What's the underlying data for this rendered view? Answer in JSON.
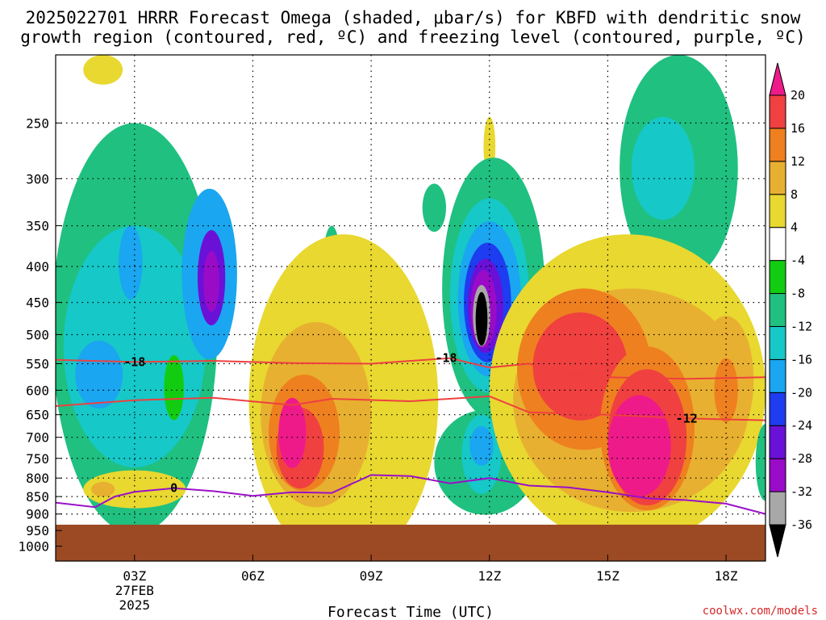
{
  "title": {
    "line1": "2025022701 HRRR Forecast Omega (shaded, μbar/s) for KBFD with dendritic snow",
    "line2": "growth region (contoured, red, ºC) and freezing level (contoured, purple, ºC)"
  },
  "credit": "coolwx.com/models",
  "chart_data": {
    "type": "heatmap",
    "title": "2025022701 HRRR Forecast Omega (shaded, μbar/s) for KBFD with dendritic snow growth region (contoured, red, ºC) and freezing level (contoured, purple, ºC)",
    "xlabel": "Forecast Time (UTC)",
    "ylabel": "",
    "x_range_hours": [
      1,
      19
    ],
    "x_ticks": [
      {
        "hour": 3,
        "label": "03Z",
        "sub1": "27FEB",
        "sub2": "2025"
      },
      {
        "hour": 6,
        "label": "06Z"
      },
      {
        "hour": 9,
        "label": "09Z"
      },
      {
        "hour": 12,
        "label": "12Z"
      },
      {
        "hour": 15,
        "label": "15Z"
      },
      {
        "hour": 18,
        "label": "18Z"
      }
    ],
    "y_scale": "log-pressure",
    "y_range_hpa": [
      1050,
      200
    ],
    "y_ticks": [
      250,
      300,
      350,
      400,
      450,
      500,
      550,
      600,
      650,
      700,
      750,
      800,
      850,
      900,
      950,
      1000
    ],
    "grid": true,
    "terrain_top_hpa": 932,
    "colorbar": {
      "levels": [
        -36,
        -32,
        -28,
        -24,
        -20,
        -16,
        -12,
        -8,
        -4,
        4,
        8,
        12,
        16,
        20
      ],
      "colors": [
        "#000000",
        "#a8a8a8",
        "#9a0bc8",
        "#6a11d8",
        "#1e3cf0",
        "#1aa6f0",
        "#16c8c8",
        "#20c080",
        "#12cc12",
        "#ffffff",
        "#e8d830",
        "#e8b030",
        "#ee8020",
        "#f04040",
        "#ee1a8a"
      ]
    },
    "colors": {
      "terrain": "#9b4a24",
      "dgz_contour": "#ee4040",
      "freezing_contour": "#9a10c8"
    },
    "contours": [
      {
        "name": "dgz_-18",
        "label": "-18",
        "points": [
          [
            1,
            543
          ],
          [
            3,
            547
          ],
          [
            5,
            545
          ],
          [
            7,
            549
          ],
          [
            9,
            550
          ],
          [
            11,
            540
          ],
          [
            12,
            557
          ],
          [
            13,
            550
          ],
          [
            14,
            570
          ],
          [
            15,
            575
          ],
          [
            17,
            578
          ],
          [
            19,
            575
          ]
        ]
      },
      {
        "name": "dgz_-12",
        "label": "-12",
        "points": [
          [
            1,
            632
          ],
          [
            3,
            620
          ],
          [
            5,
            615
          ],
          [
            7,
            630
          ],
          [
            8,
            617
          ],
          [
            10,
            622
          ],
          [
            12,
            612
          ],
          [
            13,
            645
          ],
          [
            15,
            650
          ],
          [
            17,
            658
          ],
          [
            19,
            662
          ]
        ]
      },
      {
        "name": "freezing_0",
        "label": "0",
        "points": [
          [
            1,
            867
          ],
          [
            2,
            880
          ],
          [
            2.5,
            850
          ],
          [
            3,
            837
          ],
          [
            4,
            827
          ],
          [
            5,
            835
          ],
          [
            6,
            848
          ],
          [
            7,
            838
          ],
          [
            8,
            840
          ],
          [
            9,
            792
          ],
          [
            10,
            795
          ],
          [
            11,
            814
          ],
          [
            12,
            800
          ],
          [
            13,
            820
          ],
          [
            14,
            825
          ],
          [
            15,
            838
          ],
          [
            16,
            855
          ],
          [
            17,
            860
          ],
          [
            18,
            870
          ],
          [
            19,
            900
          ]
        ]
      }
    ],
    "regions": [
      {
        "name": "descent-0230z-top",
        "level": 4,
        "hour": 2.2,
        "hpa": 210,
        "dh": 0.5,
        "dp": 25
      },
      {
        "name": "ascent-0200z-lower",
        "level": -8,
        "hour": 3.0,
        "hpa": 490,
        "dh": 2.1,
        "dp": 240
      },
      {
        "name": "ascent-0200z-lower",
        "level": -12,
        "hour": 3.0,
        "hpa": 520,
        "dh": 1.8,
        "dp": 170
      },
      {
        "name": "ascent-0200z-lower",
        "level": -16,
        "hour": 2.1,
        "hpa": 570,
        "dh": 0.6,
        "dp": 60
      },
      {
        "name": "ascent-0330z-upper",
        "level": -16,
        "hour": 2.9,
        "hpa": 395,
        "dh": 0.3,
        "dp": 45
      },
      {
        "name": "ascent-0500z",
        "level": -16,
        "hour": 4.9,
        "hpa": 410,
        "dh": 0.7,
        "dp": 100
      },
      {
        "name": "ascent-0500z",
        "level": -24,
        "hour": 4.95,
        "hpa": 415,
        "dh": 0.35,
        "dp": 60
      },
      {
        "name": "ascent-0500z",
        "level": -28,
        "hour": 4.95,
        "hpa": 420,
        "dh": 0.2,
        "dp": 40
      },
      {
        "name": "calm-hole-0400z",
        "level": -4,
        "hour": 4.0,
        "hpa": 595,
        "dh": 0.25,
        "dp": 60
      },
      {
        "name": "descent-0400z-low",
        "level": 4,
        "hour": 3.0,
        "hpa": 830,
        "dh": 1.3,
        "dp": 50
      },
      {
        "name": "descent-0400z-low",
        "level": 8,
        "hour": 2.2,
        "hpa": 830,
        "dh": 0.3,
        "dp": 20
      },
      {
        "name": "ascent-0700z-small",
        "level": -8,
        "hour": 8.0,
        "hpa": 415,
        "dh": 0.25,
        "dp": 65
      },
      {
        "name": "descent-0700z",
        "level": 4,
        "hour": 8.3,
        "hpa": 620,
        "dh": 2.4,
        "dp": 260
      },
      {
        "name": "descent-0700z",
        "level": 8,
        "hour": 7.6,
        "hpa": 650,
        "dh": 1.4,
        "dp": 170
      },
      {
        "name": "descent-0700z",
        "level": 12,
        "hour": 7.3,
        "hpa": 690,
        "dh": 0.9,
        "dp": 120
      },
      {
        "name": "descent-0700z",
        "level": 16,
        "hour": 7.2,
        "hpa": 725,
        "dh": 0.6,
        "dp": 90
      },
      {
        "name": "descent-0700z",
        "level": 20,
        "hour": 7.0,
        "hpa": 690,
        "dh": 0.35,
        "dp": 75
      },
      {
        "name": "ascent-1115z-small",
        "level": -8,
        "hour": 10.6,
        "hpa": 330,
        "dh": 0.3,
        "dp": 25
      },
      {
        "name": "descent-1200z-thin",
        "level": 4,
        "hour": 12.0,
        "hpa": 270,
        "dh": 0.15,
        "dp": 25
      },
      {
        "name": "ascent-1200z",
        "level": -8,
        "hour": 12.1,
        "hpa": 430,
        "dh": 1.3,
        "dp": 150
      },
      {
        "name": "ascent-1200z",
        "level": -12,
        "hour": 12.0,
        "hpa": 440,
        "dh": 1.0,
        "dp": 120
      },
      {
        "name": "ascent-1200z",
        "level": -16,
        "hour": 12.0,
        "hpa": 445,
        "dh": 0.8,
        "dp": 100
      },
      {
        "name": "ascent-1200z",
        "level": -20,
        "hour": 11.95,
        "hpa": 450,
        "dh": 0.6,
        "dp": 80
      },
      {
        "name": "ascent-1200z",
        "level": -24,
        "hour": 11.9,
        "hpa": 455,
        "dh": 0.45,
        "dp": 65
      },
      {
        "name": "ascent-1200z",
        "level": -28,
        "hour": 11.85,
        "hpa": 460,
        "dh": 0.33,
        "dp": 55
      },
      {
        "name": "ascent-1200z",
        "level": -32,
        "hour": 11.8,
        "hpa": 470,
        "dh": 0.22,
        "dp": 45
      },
      {
        "name": "ascent-1200z",
        "level": -36,
        "hour": 11.8,
        "hpa": 475,
        "dh": 0.15,
        "dp": 40
      },
      {
        "name": "ascent-1130z-low",
        "level": -8,
        "hour": 11.9,
        "hpa": 760,
        "dh": 1.3,
        "dp": 120
      },
      {
        "name": "ascent-1130z-low",
        "level": -12,
        "hour": 11.8,
        "hpa": 740,
        "dh": 0.5,
        "dp": 90
      },
      {
        "name": "ascent-1130z-low",
        "level": -16,
        "hour": 11.8,
        "hpa": 720,
        "dh": 0.3,
        "dp": 45
      },
      {
        "name": "ascent-1700z",
        "level": -8,
        "hour": 16.8,
        "hpa": 290,
        "dh": 1.5,
        "dp": 110
      },
      {
        "name": "ascent-1700z",
        "level": -12,
        "hour": 16.4,
        "hpa": 290,
        "dh": 0.8,
        "dp": 45
      },
      {
        "name": "ascent-1400z-small",
        "level": -8,
        "hour": 14.0,
        "hpa": 870,
        "dh": 0.3,
        "dp": 25
      },
      {
        "name": "descent-1500z",
        "level": 4,
        "hour": 15.5,
        "hpa": 600,
        "dh": 3.5,
        "dp": 240
      },
      {
        "name": "descent-1500z",
        "level": 8,
        "hour": 15.6,
        "hpa": 620,
        "dh": 3.0,
        "dp": 190
      },
      {
        "name": "descent-1500z",
        "level": 12,
        "hour": 14.4,
        "hpa": 560,
        "dh": 1.7,
        "dp": 130
      },
      {
        "name": "descent-1500z",
        "level": 16,
        "hour": 14.3,
        "hpa": 555,
        "dh": 1.2,
        "dp": 90
      },
      {
        "name": "descent-1600z",
        "level": 12,
        "hour": 16.0,
        "hpa": 680,
        "dh": 1.2,
        "dp": 160
      },
      {
        "name": "descent-1600z",
        "level": 16,
        "hour": 16.0,
        "hpa": 700,
        "dh": 1.0,
        "dp": 140
      },
      {
        "name": "descent-1600z",
        "level": 20,
        "hour": 15.8,
        "hpa": 720,
        "dh": 0.8,
        "dp": 110
      },
      {
        "name": "descent-1800z",
        "level": 8,
        "hour": 18.0,
        "hpa": 580,
        "dh": 0.7,
        "dp": 110
      },
      {
        "name": "descent-1800z",
        "level": 12,
        "hour": 18.0,
        "hpa": 600,
        "dh": 0.3,
        "dp": 60
      },
      {
        "name": "ascent-1900z-edge",
        "level": -8,
        "hour": 19.0,
        "hpa": 760,
        "dh": 0.25,
        "dp": 90
      }
    ]
  }
}
